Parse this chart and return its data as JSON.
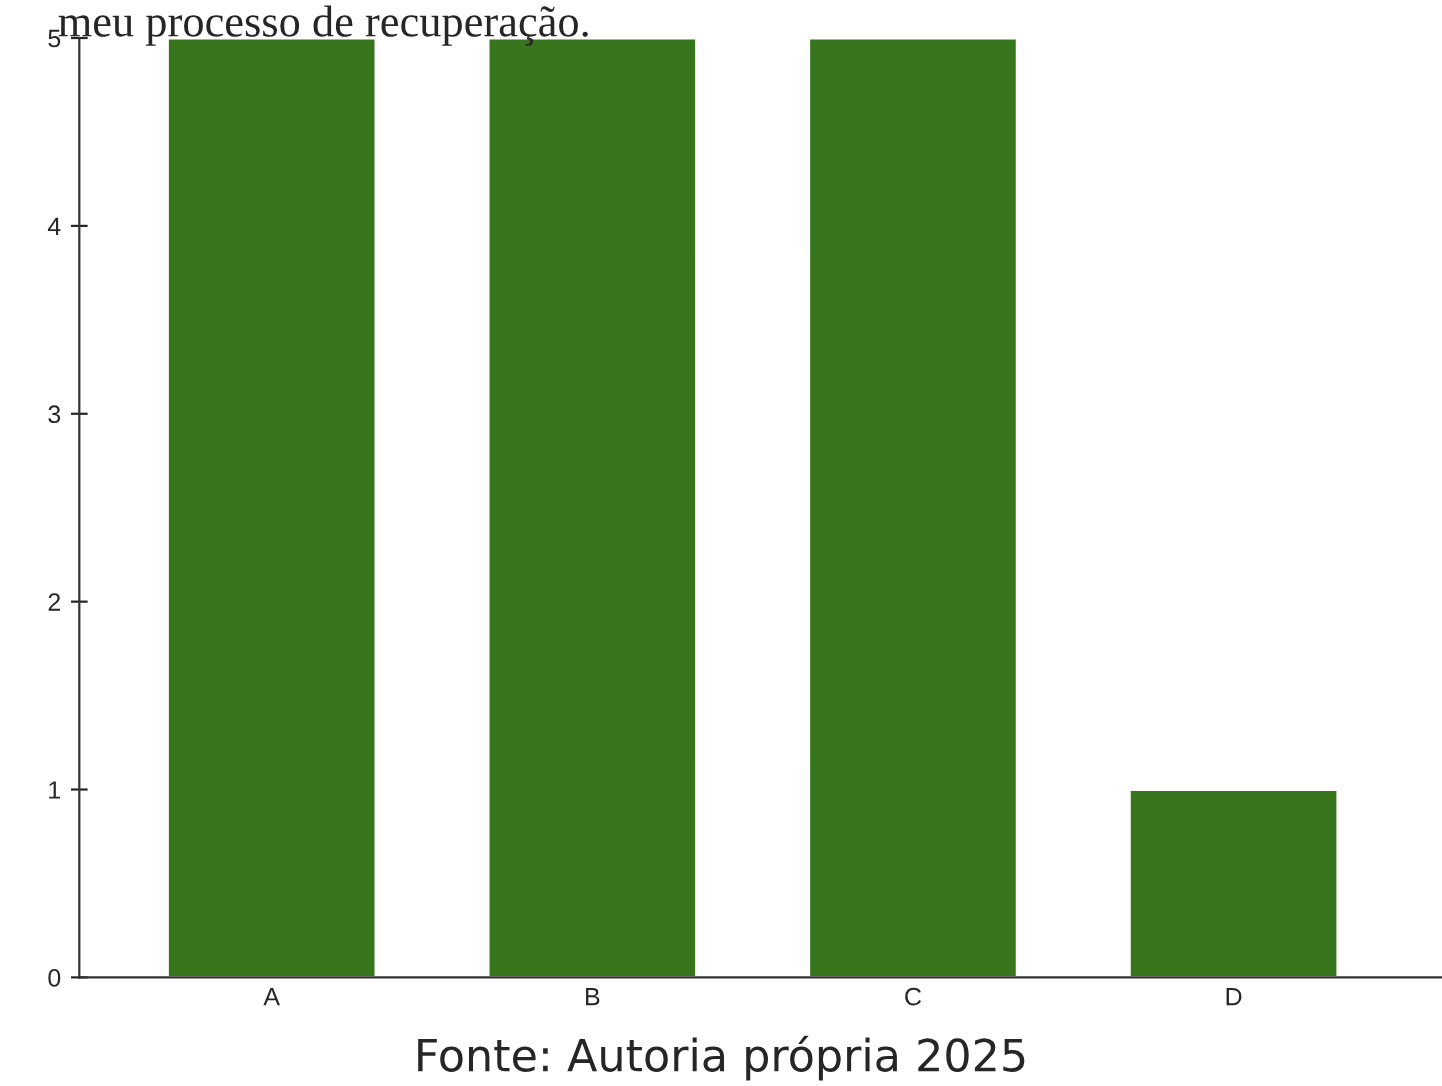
{
  "chart_data": {
    "type": "bar",
    "title": "meu processo de recuperação.",
    "categories": [
      "A",
      "B",
      "C",
      "D"
    ],
    "values": [
      5,
      5,
      5,
      1
    ],
    "color": "#38761d",
    "ylim": [
      0,
      5
    ],
    "yticks": [
      0,
      1,
      2,
      3,
      4,
      5
    ],
    "grid": false,
    "annotations": [
      "Fonte: Autoria própria 2025"
    ]
  }
}
